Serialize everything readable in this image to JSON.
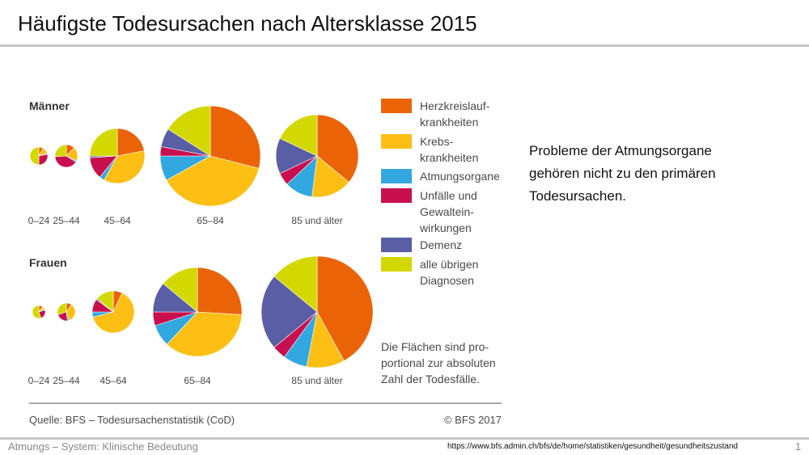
{
  "slide": {
    "title": "Häufigste Todesursachen nach Altersklasse 2015",
    "note_lines": [
      "Probleme der Atmungsorgane",
      "gehören nicht zu den primären",
      "Todesursachen."
    ],
    "footer_left": "Atmungs – System:  Klinische Bedeutung",
    "footer_url": "https://www.bfs.admin.ch/bfs/de/home/statistiken/gesundheit/gesundheitszustand",
    "page_number": "1"
  },
  "colors": {
    "herz": "#ea6407",
    "krebs": "#fdbf14",
    "atmung": "#33a8e0",
    "unfall": "#c8104f",
    "demenz": "#5a5ea5",
    "uebrige": "#d3d900",
    "text": "#4a4a4a",
    "rule": "#888888"
  },
  "chart_data": {
    "type": "pie",
    "title": "",
    "categories": [
      {
        "key": "herz",
        "lines": [
          "Herzkreislauf-",
          "krankheiten"
        ]
      },
      {
        "key": "krebs",
        "lines": [
          "Krebs-",
          "krankheiten"
        ]
      },
      {
        "key": "atmung",
        "lines": [
          "Atmungsorgane"
        ]
      },
      {
        "key": "unfall",
        "lines": [
          "Unfälle und",
          "Gewaltein-",
          "wirkungen"
        ]
      },
      {
        "key": "demenz",
        "lines": [
          "Demenz"
        ]
      },
      {
        "key": "uebrige",
        "lines": [
          "alle übrigen",
          "Diagnosen"
        ]
      }
    ],
    "groups": [
      {
        "name": "Männer",
        "pies": [
          {
            "label": "0–24",
            "radius": 11,
            "values": [
              8,
              12,
              2,
              28,
              0,
              50
            ]
          },
          {
            "label": "25–44",
            "radius": 14,
            "values": [
              12,
              20,
              2,
              40,
              0,
              26
            ]
          },
          {
            "label": "45–64",
            "radius": 34,
            "values": [
              22,
              36,
              3,
              13,
              1,
              25
            ]
          },
          {
            "label": "65–84",
            "radius": 62,
            "values": [
              29,
              38,
              8,
              3,
              6,
              16
            ]
          },
          {
            "label": "85 und älter",
            "radius": 51,
            "values": [
              36,
              16,
              11,
              5,
              14,
              18
            ]
          }
        ]
      },
      {
        "name": "Frauen",
        "pies": [
          {
            "label": "0–24",
            "radius": 8,
            "values": [
              10,
              8,
              2,
              25,
              0,
              55
            ]
          },
          {
            "label": "25–44",
            "radius": 11,
            "values": [
              10,
              35,
              3,
              22,
              0,
              30
            ]
          },
          {
            "label": "45–64",
            "radius": 26,
            "values": [
              7,
              64,
              4,
              10,
              1,
              14
            ]
          },
          {
            "label": "65–84",
            "radius": 55,
            "values": [
              26,
              36,
              8,
              5,
              11,
              14
            ]
          },
          {
            "label": "85 und älter",
            "radius": 69,
            "values": [
              42,
              11,
              7,
              4,
              22,
              14
            ]
          }
        ]
      }
    ],
    "annotation_lines": [
      "Die Flächen sind pro-",
      "portional zur absoluten",
      "Zahl der Todesfälle."
    ],
    "source": "Quelle: BFS – Todesursachenstatistik (CoD)",
    "copyright": "© BFS 2017"
  }
}
